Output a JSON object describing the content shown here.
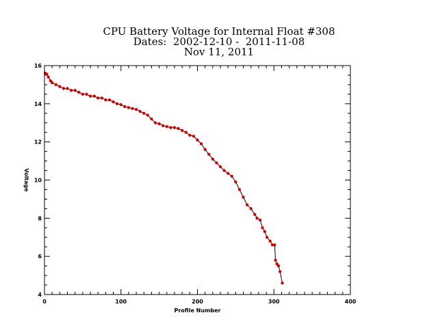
{
  "title": {
    "line1": "CPU Battery Voltage for Internal Float #308",
    "line2": "Dates:  2002-12-10 -  2011-11-08",
    "line3": "Nov 11, 2011"
  },
  "colors": {
    "marker": "#dd0000",
    "line": "#000000",
    "background": "#ffffff"
  },
  "chart_data": {
    "type": "scatter",
    "title": "CPU Battery Voltage for Internal Float #308",
    "xlabel": "Profile Number",
    "ylabel": "Voltage",
    "xlim": [
      0,
      400
    ],
    "ylim": [
      4,
      16
    ],
    "x_ticks": [
      0,
      100,
      200,
      300,
      400
    ],
    "y_ticks": [
      4,
      6,
      8,
      10,
      12,
      14,
      16
    ],
    "grid": false,
    "connected": true,
    "series": [
      {
        "x": [
          1,
          3,
          5,
          8,
          10,
          15,
          20,
          25,
          30,
          35,
          40,
          45,
          50,
          55,
          60,
          65,
          70,
          75,
          80,
          85,
          90,
          95,
          100,
          105,
          110,
          115,
          120,
          125,
          130,
          135,
          140,
          145,
          150,
          155,
          160,
          165,
          170,
          175,
          180,
          185,
          190,
          195,
          200,
          205,
          210,
          215,
          220,
          225,
          230,
          235,
          240,
          245,
          250,
          255,
          260,
          265,
          270,
          275,
          278,
          282,
          285,
          288,
          291,
          295,
          298,
          301,
          302,
          304,
          306,
          308,
          311
        ],
        "y": [
          15.6,
          15.55,
          15.4,
          15.2,
          15.1,
          15.0,
          14.9,
          14.8,
          14.8,
          14.7,
          14.7,
          14.6,
          14.5,
          14.5,
          14.4,
          14.4,
          14.3,
          14.3,
          14.2,
          14.2,
          14.1,
          14.0,
          13.95,
          13.85,
          13.8,
          13.75,
          13.7,
          13.6,
          13.5,
          13.4,
          13.2,
          13.0,
          12.95,
          12.85,
          12.8,
          12.75,
          12.75,
          12.7,
          12.6,
          12.5,
          12.35,
          12.3,
          12.1,
          11.9,
          11.6,
          11.35,
          11.1,
          10.9,
          10.7,
          10.5,
          10.35,
          10.2,
          9.9,
          9.5,
          9.1,
          8.7,
          8.5,
          8.2,
          8.0,
          7.9,
          7.5,
          7.3,
          7.0,
          6.8,
          6.6,
          6.6,
          5.8,
          5.6,
          5.5,
          5.2,
          4.6
        ]
      }
    ]
  }
}
